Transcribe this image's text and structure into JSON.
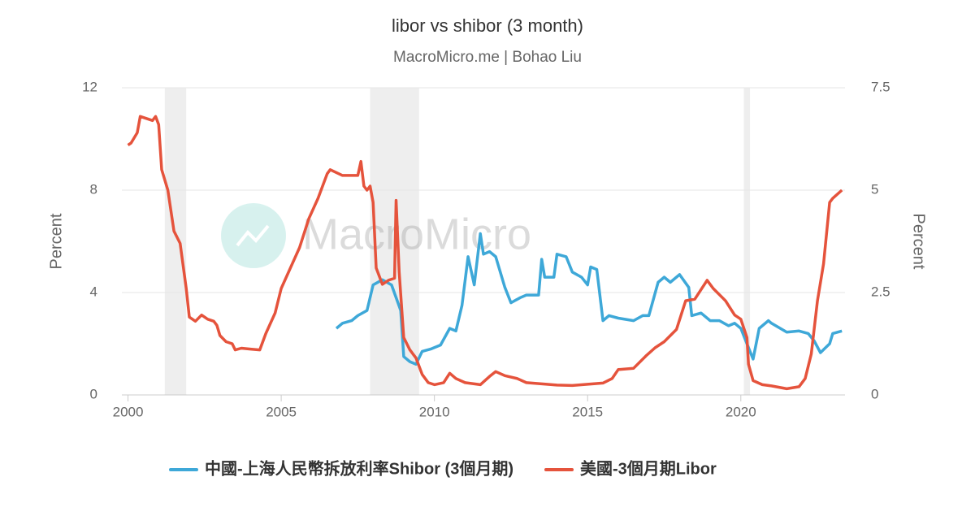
{
  "chart_data": {
    "type": "line",
    "title": "libor vs shibor (3 month)",
    "subtitle": "MacroMicro.me | Bohao Liu",
    "watermark": "MacroMicro",
    "y_label": "Percent",
    "y2_label": "Percent",
    "xlim": [
      1999.8,
      2023.4
    ],
    "xticks": [
      2000,
      2005,
      2010,
      2015,
      2020
    ],
    "ylim": [
      0,
      12
    ],
    "yticks": [
      0,
      4,
      8,
      12
    ],
    "y2lim": [
      0,
      7.5
    ],
    "y2ticks": [
      0,
      2.5,
      5,
      7.5
    ],
    "grid": true,
    "shaded_ranges": [
      [
        2001.2,
        2001.9
      ],
      [
        2007.9,
        2009.5
      ],
      [
        2020.1,
        2020.3
      ]
    ],
    "series": [
      {
        "name": "中國-上海人民幣拆放利率Shibor (3個月期)",
        "color": "#3ea8d8",
        "x": [
          2006.8,
          2007.0,
          2007.3,
          2007.5,
          2007.8,
          2008.0,
          2008.3,
          2008.6,
          2008.9,
          2009.0,
          2009.2,
          2009.4,
          2009.6,
          2009.9,
          2010.2,
          2010.5,
          2010.7,
          2010.9,
          2011.1,
          2011.3,
          2011.5,
          2011.6,
          2011.8,
          2012.0,
          2012.3,
          2012.5,
          2012.8,
          2013.0,
          2013.4,
          2013.5,
          2013.6,
          2013.9,
          2014.0,
          2014.3,
          2014.5,
          2014.8,
          2015.0,
          2015.1,
          2015.3,
          2015.5,
          2015.7,
          2016.0,
          2016.5,
          2016.8,
          2017.0,
          2017.3,
          2017.5,
          2017.7,
          2018.0,
          2018.3,
          2018.4,
          2018.7,
          2019.0,
          2019.3,
          2019.6,
          2019.8,
          2020.0,
          2020.2,
          2020.4,
          2020.6,
          2020.9,
          2021.0,
          2021.5,
          2021.9,
          2022.2,
          2022.4,
          2022.6,
          2022.9,
          2023.0,
          2023.3
        ],
        "values": [
          2.6,
          2.8,
          2.9,
          3.1,
          3.3,
          4.3,
          4.5,
          4.3,
          3.3,
          1.5,
          1.3,
          1.2,
          1.7,
          1.8,
          1.95,
          2.6,
          2.5,
          3.5,
          5.4,
          4.3,
          6.3,
          5.5,
          5.6,
          5.4,
          4.2,
          3.6,
          3.8,
          3.9,
          3.9,
          5.3,
          4.6,
          4.6,
          5.5,
          5.4,
          4.8,
          4.6,
          4.3,
          5.0,
          4.9,
          2.9,
          3.1,
          3.0,
          2.9,
          3.1,
          3.1,
          4.4,
          4.6,
          4.4,
          4.7,
          4.2,
          3.1,
          3.2,
          2.9,
          2.9,
          2.7,
          2.8,
          2.6,
          2.0,
          1.4,
          2.6,
          2.9,
          2.8,
          2.45,
          2.5,
          2.4,
          2.1,
          1.65,
          2.0,
          2.4,
          2.5
        ]
      },
      {
        "name": "美國-3個月期Libor",
        "color": "#e5533c",
        "axis": "y2",
        "x": [
          2000.0,
          2000.1,
          2000.3,
          2000.4,
          2000.6,
          2000.8,
          2000.9,
          2001.0,
          2001.1,
          2001.3,
          2001.5,
          2001.7,
          2001.9,
          2002.0,
          2002.2,
          2002.4,
          2002.6,
          2002.8,
          2002.9,
          2003.0,
          2003.2,
          2003.4,
          2003.5,
          2003.7,
          2004.0,
          2004.3,
          2004.5,
          2004.8,
          2005.0,
          2005.3,
          2005.6,
          2005.9,
          2006.2,
          2006.5,
          2006.6,
          2007.0,
          2007.5,
          2007.6,
          2007.7,
          2007.8,
          2007.9,
          2008.0,
          2008.1,
          2008.3,
          2008.5,
          2008.7,
          2008.75,
          2008.85,
          2009.0,
          2009.2,
          2009.4,
          2009.6,
          2009.8,
          2010.0,
          2010.3,
          2010.5,
          2010.7,
          2011.0,
          2011.5,
          2011.8,
          2012.0,
          2012.3,
          2012.7,
          2013.0,
          2013.5,
          2014.0,
          2014.5,
          2015.0,
          2015.5,
          2015.8,
          2016.0,
          2016.5,
          2016.9,
          2017.2,
          2017.5,
          2017.9,
          2018.2,
          2018.5,
          2018.9,
          2019.1,
          2019.5,
          2019.8,
          2020.0,
          2020.2,
          2020.25,
          2020.4,
          2020.7,
          2021.0,
          2021.5,
          2021.9,
          2022.1,
          2022.3,
          2022.5,
          2022.7,
          2022.9,
          2023.0,
          2023.3
        ],
        "values": [
          6.1,
          6.15,
          6.4,
          6.8,
          6.75,
          6.7,
          6.8,
          6.6,
          5.5,
          5.0,
          4.0,
          3.7,
          2.6,
          1.9,
          1.8,
          1.95,
          1.85,
          1.8,
          1.7,
          1.45,
          1.3,
          1.25,
          1.1,
          1.14,
          1.12,
          1.1,
          1.5,
          2.0,
          2.6,
          3.1,
          3.6,
          4.3,
          4.8,
          5.4,
          5.5,
          5.36,
          5.36,
          5.7,
          5.1,
          5.0,
          5.1,
          4.7,
          3.1,
          2.7,
          2.8,
          2.85,
          4.75,
          3.0,
          1.4,
          1.1,
          0.9,
          0.5,
          0.3,
          0.25,
          0.3,
          0.53,
          0.4,
          0.3,
          0.25,
          0.45,
          0.57,
          0.47,
          0.4,
          0.3,
          0.27,
          0.24,
          0.23,
          0.26,
          0.29,
          0.4,
          0.62,
          0.65,
          0.95,
          1.15,
          1.3,
          1.6,
          2.3,
          2.34,
          2.8,
          2.6,
          2.3,
          1.95,
          1.85,
          1.4,
          0.75,
          0.35,
          0.25,
          0.22,
          0.15,
          0.2,
          0.4,
          1.0,
          2.3,
          3.2,
          4.7,
          4.8,
          5.0
        ]
      }
    ]
  }
}
